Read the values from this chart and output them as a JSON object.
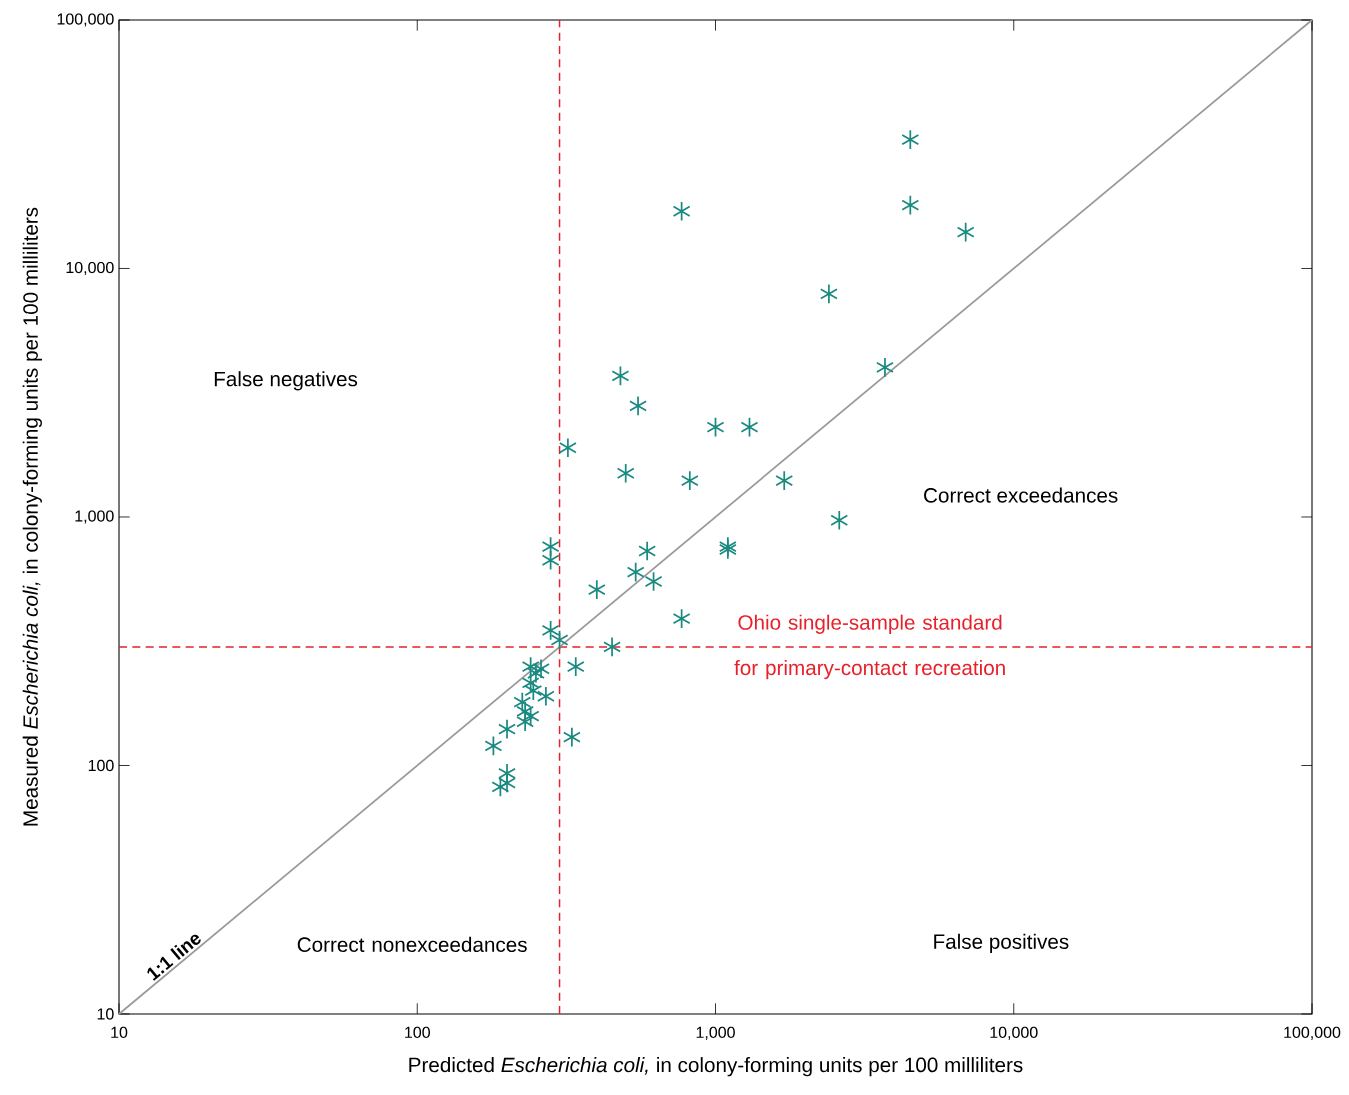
{
  "chart_data": {
    "type": "scatter",
    "log": "xy",
    "marker": "cross",
    "grid": false,
    "xlabel": "Predicted *Escherichia coli,* in colony-forming units per 100 milliliters",
    "ylabel": "Measured *Escherichia coli,* in colony-forming units per 100 milliliters",
    "xlim": [
      10,
      100000
    ],
    "ylim": [
      10,
      100000
    ],
    "xticks": [
      {
        "value": 10,
        "label": "10"
      },
      {
        "value": 100,
        "label": "100"
      },
      {
        "value": 1000,
        "label": "1,000"
      },
      {
        "value": 10000,
        "label": "10,000"
      },
      {
        "value": 100000,
        "label": "100,000"
      }
    ],
    "yticks": [
      {
        "value": 10,
        "label": "10"
      },
      {
        "value": 100,
        "label": "100"
      },
      {
        "value": 1000,
        "label": "1,000"
      },
      {
        "value": 10000,
        "label": "10,000"
      },
      {
        "value": 100000,
        "label": "100,000"
      }
    ],
    "series": [
      {
        "type": "scatter",
        "color": "#1a8a80",
        "x": [
          4500,
          4500,
          6900,
          770,
          2400,
          3700,
          480,
          550,
          1000,
          1300,
          320,
          500,
          820,
          1700,
          2600,
          1100,
          1100,
          280,
          280,
          590,
          540,
          620,
          400,
          770,
          450,
          280,
          300,
          340,
          330,
          240,
          260,
          250,
          240,
          245,
          270,
          225,
          230,
          240,
          230,
          200,
          180,
          200,
          190,
          200
        ],
        "values": [
          33000,
          18000,
          14000,
          17000,
          7900,
          4000,
          3700,
          2800,
          2300,
          2300,
          1900,
          1500,
          1400,
          1400,
          970,
          760,
          740,
          760,
          670,
          730,
          600,
          550,
          510,
          390,
          300,
          350,
          320,
          250,
          130,
          250,
          245,
          235,
          215,
          200,
          190,
          180,
          165,
          158,
          150,
          140,
          120,
          93,
          82,
          85
        ]
      },
      {
        "type": "line",
        "marker": "none",
        "name": "1:1 line",
        "color": "#999999",
        "x": [
          10,
          100000
        ],
        "values": [
          10,
          100000
        ]
      }
    ],
    "ref_lines": [
      {
        "axis": "x",
        "value": 300,
        "color": "#e8202a",
        "line_style": "dashed"
      },
      {
        "axis": "y",
        "value": 300,
        "color": "#e8202a",
        "line_style": "dashed",
        "label": "Ohio single-sample standard for primary-contact recreation"
      }
    ],
    "annotations": [
      "False negatives",
      "Correct exceedances",
      "Correct nonexceedances",
      "False positives"
    ]
  }
}
